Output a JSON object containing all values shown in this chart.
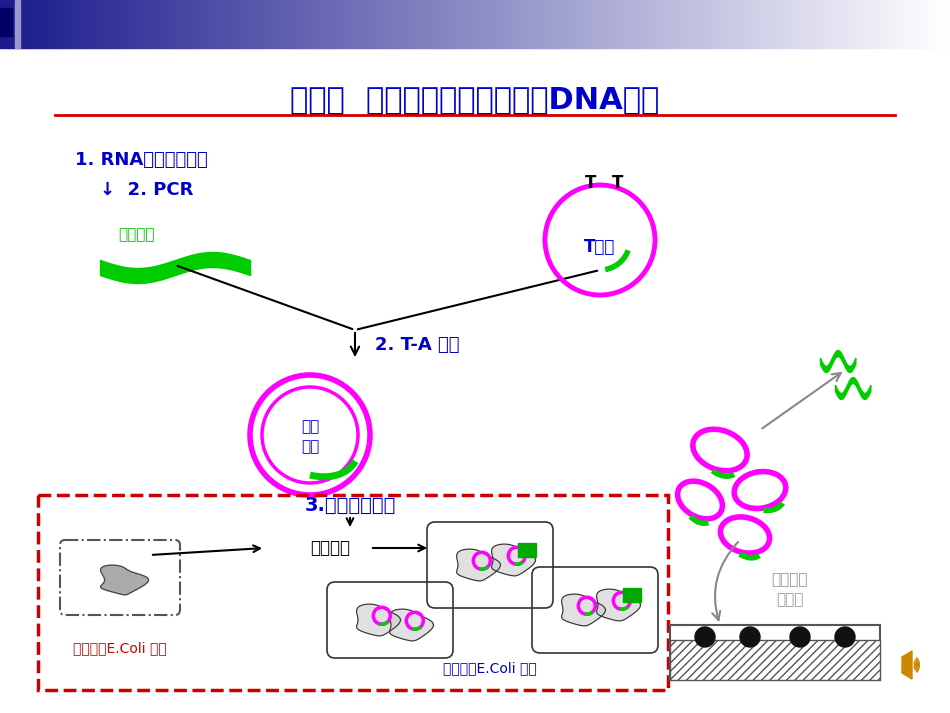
{
  "title": "实验三  感受态细胞制备及重组DNA转化",
  "title_color": "#0000CC",
  "title_fontsize": 22,
  "bg_color": "#FFFFFF",
  "header_gradient_left": "#1a1a8c",
  "header_gradient_right": "#FFFFFF",
  "step1_text": "1. RNA提取与逆转录",
  "step2_text": "↓  2. PCR",
  "target_gene_label": "目的基因",
  "ta_ligation": "2. T-A 连接",
  "t_vector_label": "T载体",
  "recombinant_label1": "重组",
  "recombinant_label2": "质粒",
  "step3_text": "3.连接产物转化",
  "plate_screen": "平板筛选",
  "no_plasmid_label": "无质粒的E.Coli 死亡",
  "has_plasmid_label": "有质粒的E.Coli 存活",
  "recombinant_id_label1": "重组质粒",
  "recombinant_id_label2": "的鉴定",
  "green_color": "#00CC00",
  "magenta_color": "#FF00FF",
  "blue_text_color": "#0000CC",
  "red_box_color": "#CC0000",
  "gray_color": "#999999",
  "dark_navy": "#000066"
}
